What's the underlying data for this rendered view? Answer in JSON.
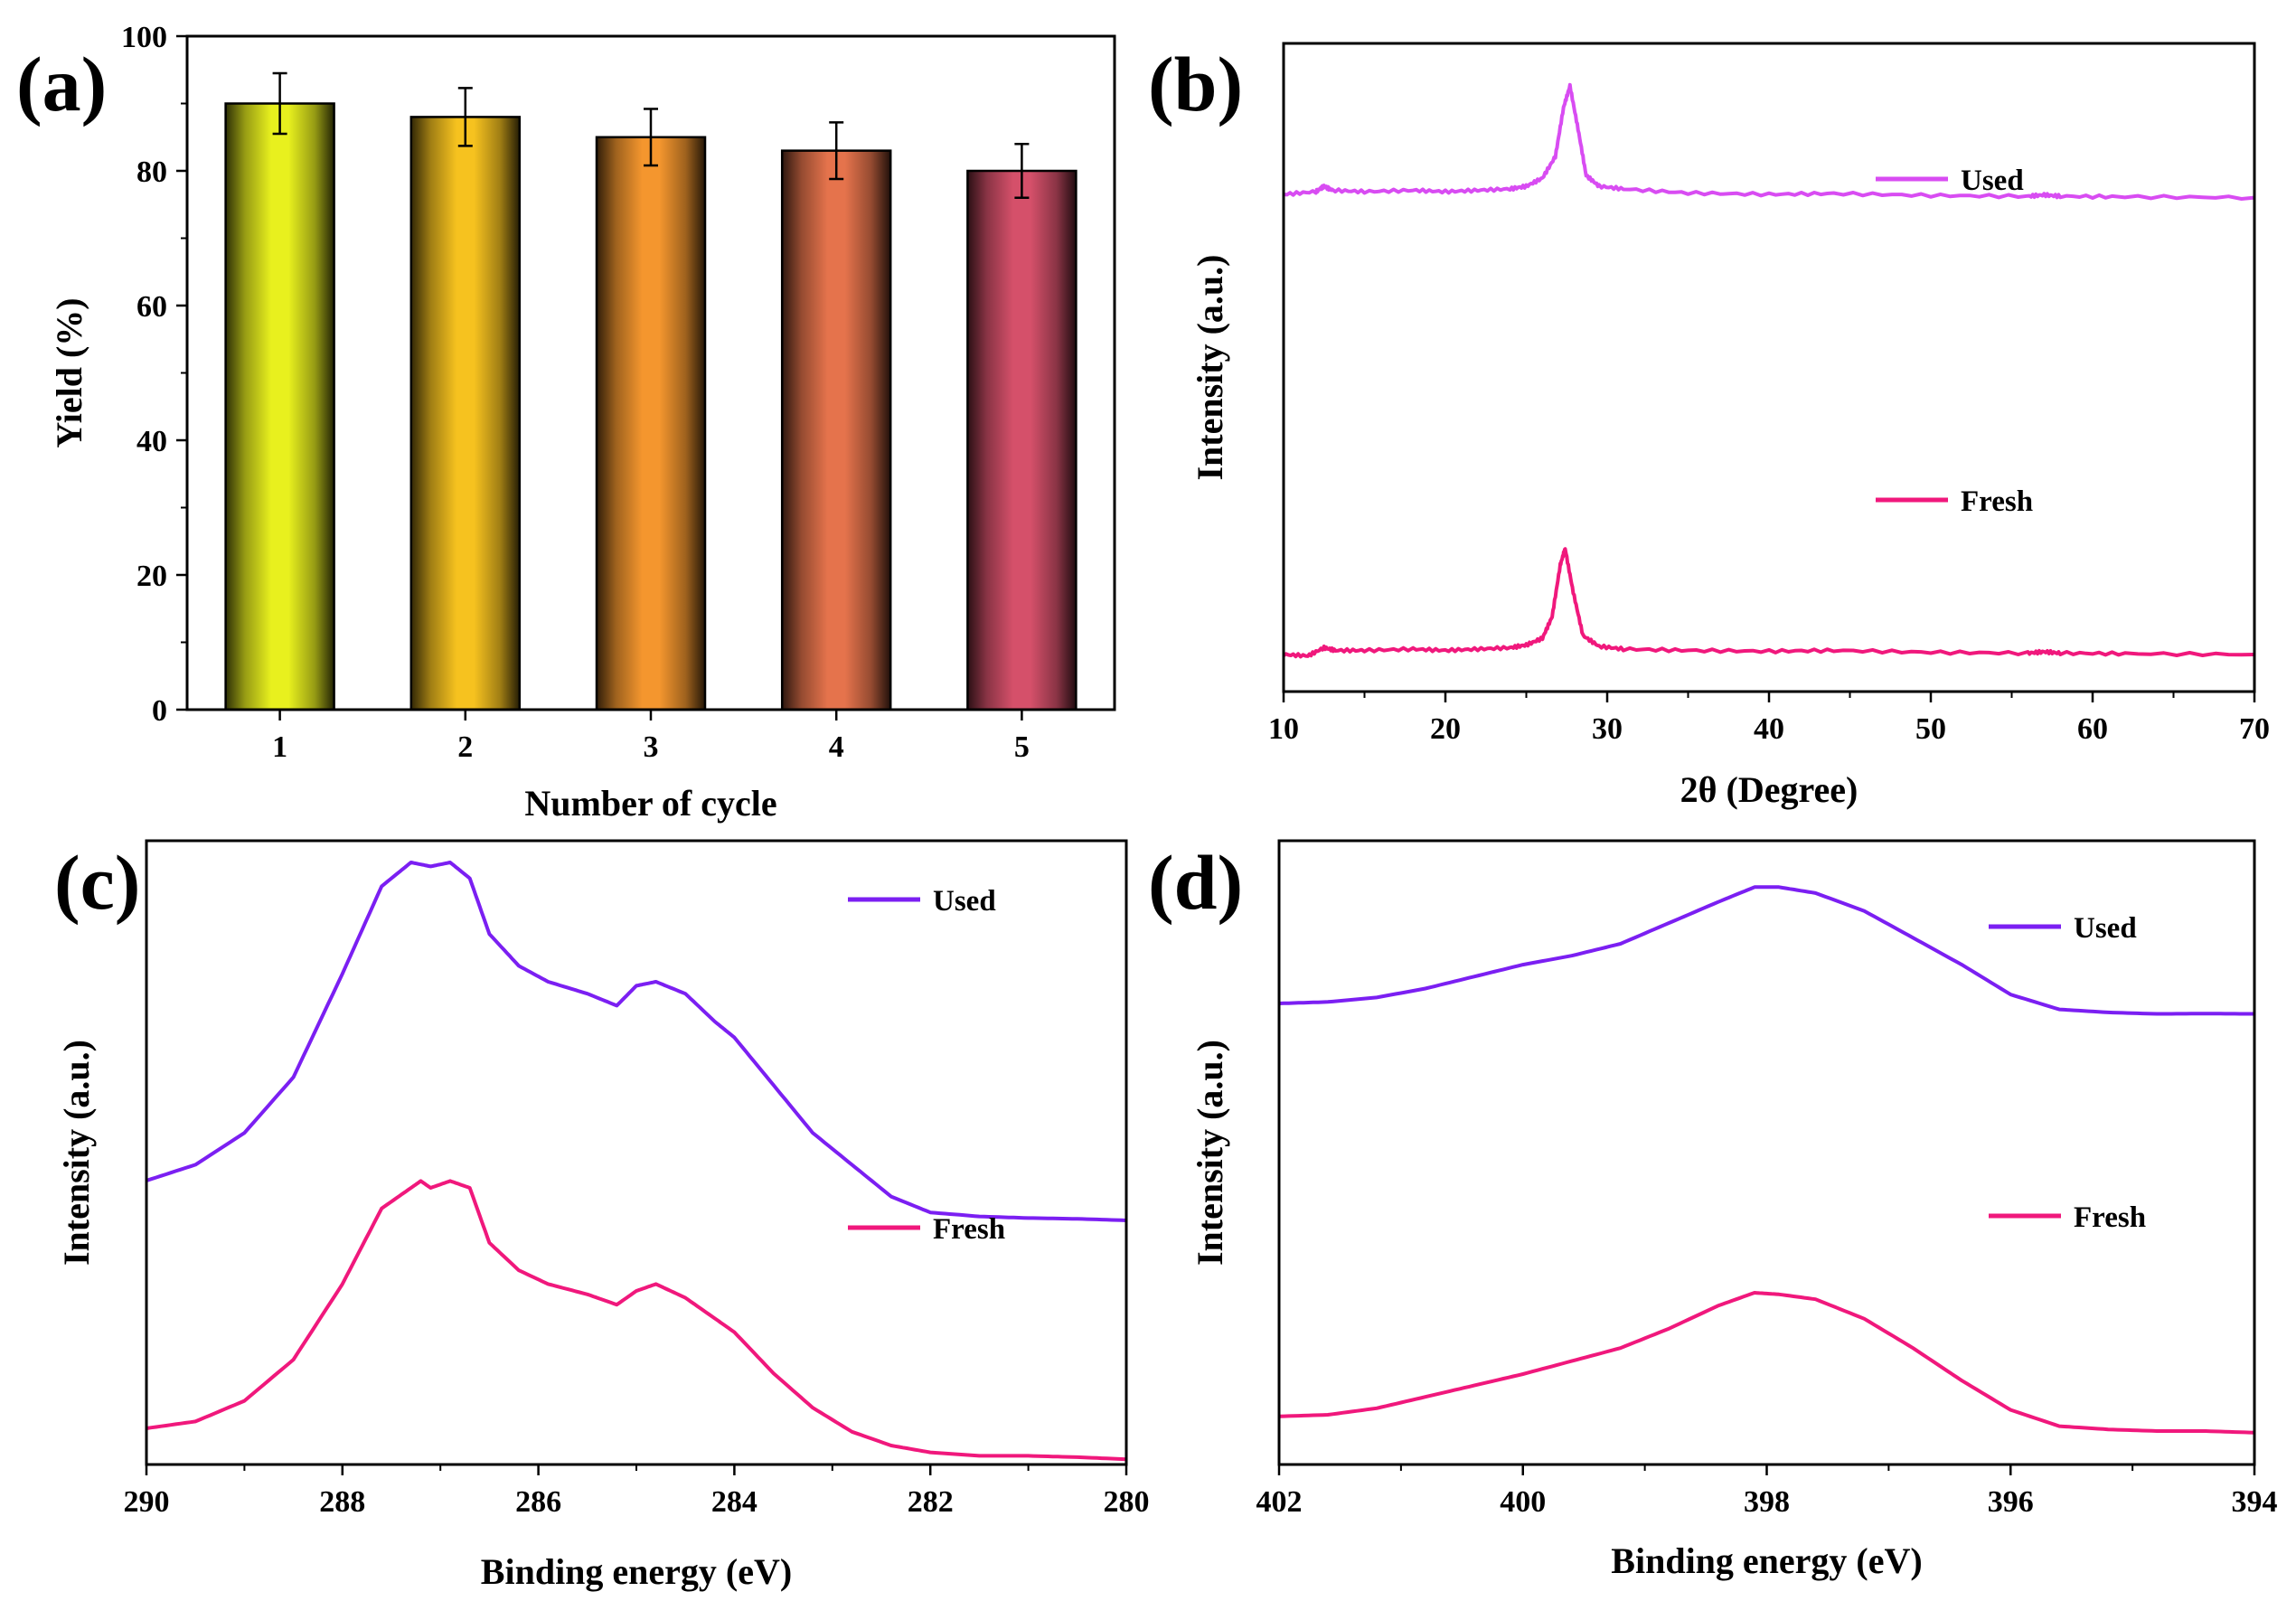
{
  "chart_data": [
    {
      "panel": "(a)",
      "type": "bar",
      "categories": [
        "1",
        "2",
        "3",
        "4",
        "5"
      ],
      "values": [
        90,
        88,
        85,
        83,
        80
      ],
      "errors": [
        4.5,
        4.3,
        4.2,
        4.2,
        4.0
      ],
      "bar_colors": [
        "#e8f01e",
        "#f6c21f",
        "#f4962e",
        "#e5734c",
        "#d5506a"
      ],
      "xlabel": "Number of cycle",
      "ylabel": "Yield (%)",
      "ylim": [
        0,
        100
      ],
      "yticks": [
        "0",
        "20",
        "40",
        "60",
        "80",
        "100"
      ]
    },
    {
      "panel": "(b)",
      "type": "line",
      "xlabel": "2θ (Degree)",
      "ylabel": "Intensity (a.u.)",
      "xlim": [
        10,
        70
      ],
      "xticks": [
        "10",
        "20",
        "30",
        "40",
        "50",
        "60",
        "70"
      ],
      "peak_position": 27.5,
      "legend_placement": "right",
      "series": [
        {
          "name": "Used",
          "color": "#d84cf2",
          "x": [
            10,
            12,
            12.5,
            13,
            15,
            18,
            20,
            22,
            24,
            25,
            26,
            26.8,
            27.3,
            27.7,
            28.2,
            28.7,
            29.5,
            31,
            35,
            40,
            44,
            50,
            56,
            57,
            58,
            62,
            70
          ],
          "y": [
            60,
            61,
            63,
            61.5,
            61,
            61.5,
            61,
            61.5,
            62,
            63,
            66,
            74,
            92,
            100,
            84,
            67,
            63,
            62,
            60.5,
            60,
            60.3,
            59.6,
            59.3,
            59.8,
            59.3,
            59.1,
            58.8
          ]
        },
        {
          "name": "Fresh",
          "color": "#f0187c",
          "x": [
            10,
            11.5,
            12.5,
            13.2,
            15,
            18,
            20,
            22,
            24,
            25,
            26,
            26.6,
            27.1,
            27.4,
            27.9,
            28.5,
            29.5,
            31,
            35,
            40,
            44,
            50,
            56,
            57,
            58,
            62,
            70
          ],
          "y": [
            12,
            11.5,
            14.5,
            13.5,
            13.5,
            14,
            13.5,
            14,
            14.5,
            15.5,
            18,
            26,
            45,
            51,
            35,
            19,
            15,
            14,
            13.5,
            13.2,
            13.5,
            12.8,
            12.5,
            13,
            12.5,
            12.3,
            12
          ]
        }
      ]
    },
    {
      "panel": "(c)",
      "type": "line",
      "xlabel": "Binding energy (eV)",
      "ylabel": "Intensity (a.u.)",
      "xlim": [
        290,
        280
      ],
      "xticks": [
        "290",
        "288",
        "286",
        "284",
        "282",
        "280"
      ],
      "legend_placement": "right",
      "series": [
        {
          "name": "Used",
          "color": "#7b1ff2",
          "x": [
            290,
            289.5,
            289,
            288.5,
            288,
            287.6,
            287.3,
            287.1,
            286.9,
            286.7,
            286.5,
            286.2,
            285.9,
            285.5,
            285.2,
            285.0,
            284.8,
            284.5,
            284.2,
            284.0,
            283.6,
            283.2,
            282.8,
            282.4,
            282.0,
            281.5,
            281,
            280.5,
            280
          ],
          "y": [
            55,
            57,
            61,
            68,
            81,
            92,
            95,
            94.5,
            95,
            93,
            86,
            82,
            80,
            78.5,
            77,
            79.5,
            80,
            78.5,
            75,
            73,
            67,
            61,
            57,
            53,
            51,
            50.5,
            50.3,
            50.2,
            50
          ]
        },
        {
          "name": "Fresh",
          "color": "#f0187c",
          "x": [
            290,
            289.5,
            289,
            288.5,
            288,
            287.6,
            287.3,
            287.2,
            287.1,
            286.9,
            286.7,
            286.5,
            286.2,
            285.9,
            285.5,
            285.2,
            285.0,
            284.8,
            284.5,
            284.2,
            284.0,
            283.6,
            283.2,
            282.8,
            282.4,
            282.0,
            281.5,
            281,
            280.5,
            280
          ],
          "y": [
            5,
            6,
            9,
            15,
            26,
            37,
            40,
            41,
            40,
            41,
            40,
            32,
            28,
            26,
            24.5,
            23,
            25,
            26,
            24,
            21,
            19,
            13,
            8,
            4.5,
            2.5,
            1.5,
            1,
            1,
            0.8,
            0.5
          ]
        }
      ]
    },
    {
      "panel": "(d)",
      "type": "line",
      "xlabel": "Binding energy (eV)",
      "ylabel": "Intensity (a.u.)",
      "xlim": [
        402,
        394
      ],
      "xticks": [
        "402",
        "400",
        "398",
        "396",
        "394"
      ],
      "legend_placement": "right",
      "series": [
        {
          "name": "Used",
          "color": "#7b1ff2",
          "x": [
            402,
            401.6,
            401.2,
            400.8,
            400.4,
            400.0,
            399.6,
            399.2,
            398.8,
            398.4,
            398.1,
            397.9,
            397.6,
            397.2,
            396.8,
            396.4,
            396.0,
            395.6,
            395.2,
            394.8,
            394.4,
            394
          ],
          "y": [
            60,
            60.5,
            62,
            65,
            69,
            73,
            76,
            80,
            87,
            94,
            99,
            99,
            97,
            91,
            82,
            73,
            63,
            58,
            57,
            56.5,
            56.6,
            56.5
          ]
        },
        {
          "name": "Fresh",
          "color": "#f0187c",
          "x": [
            402,
            401.6,
            401.2,
            400.8,
            400.4,
            400.0,
            399.6,
            399.2,
            398.8,
            398.4,
            398.1,
            397.9,
            397.6,
            397.2,
            396.8,
            396.4,
            396.0,
            395.6,
            395.2,
            394.8,
            394.4,
            394
          ],
          "y": [
            7,
            7.5,
            9.5,
            13,
            16.5,
            20,
            24,
            28,
            34,
            41,
            45,
            44.5,
            43,
            37,
            28,
            18,
            9,
            4,
            3,
            2.5,
            2.5,
            2
          ]
        }
      ]
    }
  ]
}
